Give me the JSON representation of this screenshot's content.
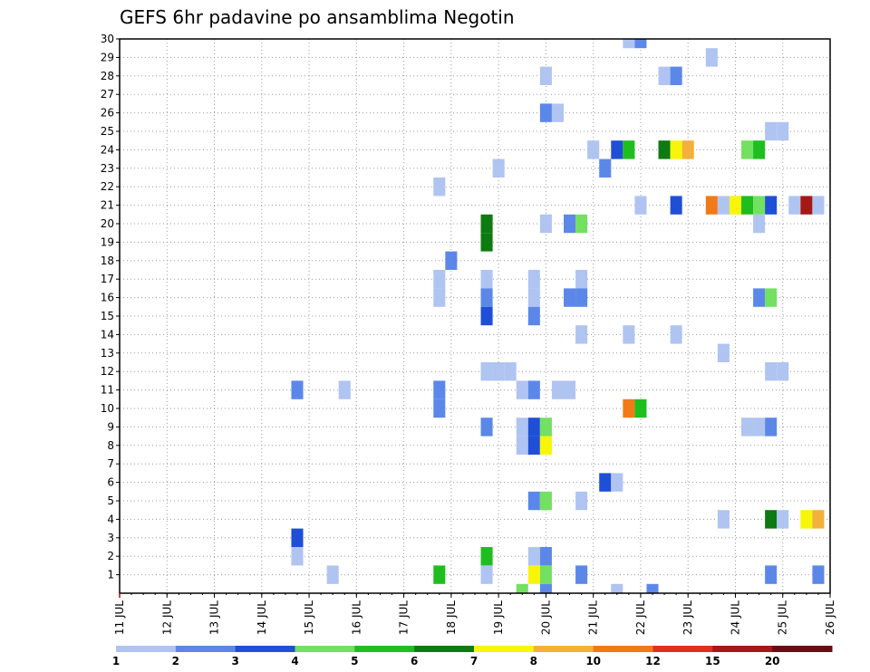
{
  "chart_data": {
    "type": "heatmap",
    "title": "GEFS 6hr padavine po ansamblima Negotin",
    "ylabel": "",
    "xlabel": "",
    "y_range": [
      0,
      30
    ],
    "y_ticks": [
      "1",
      "2",
      "3",
      "4",
      "5",
      "6",
      "7",
      "8",
      "9",
      "10",
      "11",
      "12",
      "13",
      "14",
      "15",
      "16",
      "17",
      "18",
      "19",
      "20",
      "21",
      "22",
      "23",
      "24",
      "25",
      "26",
      "27",
      "28",
      "29",
      "30"
    ],
    "x_range": [
      11,
      26
    ],
    "x_ticks": [
      {
        "day": 11,
        "label": "11 JUL"
      },
      {
        "day": 12,
        "label": "12 JUL"
      },
      {
        "day": 13,
        "label": "13 JUL"
      },
      {
        "day": 14,
        "label": "14 JUL"
      },
      {
        "day": 15,
        "label": "15 JUL"
      },
      {
        "day": 16,
        "label": "16 JUL"
      },
      {
        "day": 17,
        "label": "17 JUL"
      },
      {
        "day": 18,
        "label": "18 JUL"
      },
      {
        "day": 19,
        "label": "19 JUL"
      },
      {
        "day": 20,
        "label": "20 JUL"
      },
      {
        "day": 21,
        "label": "21 JUL"
      },
      {
        "day": 22,
        "label": "22 JUL"
      },
      {
        "day": 23,
        "label": "23 JUL"
      },
      {
        "day": 24,
        "label": "24 JUL"
      },
      {
        "day": 25,
        "label": "25 JUL"
      },
      {
        "day": 26,
        "label": "26 JUL"
      }
    ],
    "colorbar": {
      "labels": [
        "1",
        "2",
        "3",
        "4",
        "5",
        "6",
        "7",
        "8",
        "10",
        "12",
        "15",
        "20"
      ],
      "colors": [
        "#b0c4f2",
        "#5b88e8",
        "#1f4fd6",
        "#72e060",
        "#1fbe1f",
        "#0d7a12",
        "#f7f50a",
        "#f5b03a",
        "#f07a18",
        "#e0301c",
        "#a51818",
        "#6a0c14"
      ]
    },
    "cells": [
      {
        "m": 30,
        "t": 21.75,
        "c": 0
      },
      {
        "m": 30,
        "t": 22.0,
        "c": 1
      },
      {
        "m": 29,
        "t": 23.5,
        "c": 0
      },
      {
        "m": 28,
        "t": 20.0,
        "c": 0
      },
      {
        "m": 28,
        "t": 22.5,
        "c": 0
      },
      {
        "m": 28,
        "t": 22.75,
        "c": 1
      },
      {
        "m": 26,
        "t": 20.0,
        "c": 1
      },
      {
        "m": 26,
        "t": 20.25,
        "c": 0
      },
      {
        "m": 25,
        "t": 24.75,
        "c": 0
      },
      {
        "m": 25,
        "t": 25.0,
        "c": 0
      },
      {
        "m": 24,
        "t": 21.0,
        "c": 0
      },
      {
        "m": 24,
        "t": 21.5,
        "c": 2
      },
      {
        "m": 24,
        "t": 21.75,
        "c": 4
      },
      {
        "m": 24,
        "t": 22.5,
        "c": 5
      },
      {
        "m": 24,
        "t": 22.75,
        "c": 6
      },
      {
        "m": 24,
        "t": 23.0,
        "c": 7
      },
      {
        "m": 24,
        "t": 24.25,
        "c": 3
      },
      {
        "m": 24,
        "t": 24.5,
        "c": 4
      },
      {
        "m": 23,
        "t": 19.0,
        "c": 0
      },
      {
        "m": 23,
        "t": 21.25,
        "c": 1
      },
      {
        "m": 22,
        "t": 17.75,
        "c": 0
      },
      {
        "m": 21,
        "t": 22.0,
        "c": 0
      },
      {
        "m": 21,
        "t": 22.75,
        "c": 2
      },
      {
        "m": 21,
        "t": 23.5,
        "c": 8
      },
      {
        "m": 21,
        "t": 23.75,
        "c": 0
      },
      {
        "m": 21,
        "t": 24.0,
        "c": 6
      },
      {
        "m": 21,
        "t": 24.25,
        "c": 4
      },
      {
        "m": 21,
        "t": 24.5,
        "c": 3
      },
      {
        "m": 21,
        "t": 24.75,
        "c": 2
      },
      {
        "m": 21,
        "t": 25.25,
        "c": 0
      },
      {
        "m": 21,
        "t": 25.5,
        "c": 10
      },
      {
        "m": 21,
        "t": 25.75,
        "c": 0
      },
      {
        "m": 20,
        "t": 18.75,
        "c": 5
      },
      {
        "m": 20,
        "t": 20.0,
        "c": 0
      },
      {
        "m": 20,
        "t": 20.5,
        "c": 1
      },
      {
        "m": 20,
        "t": 20.75,
        "c": 3
      },
      {
        "m": 20,
        "t": 24.5,
        "c": 0
      },
      {
        "m": 19,
        "t": 18.75,
        "c": 5
      },
      {
        "m": 18,
        "t": 18.0,
        "c": 1
      },
      {
        "m": 17,
        "t": 17.75,
        "c": 0
      },
      {
        "m": 17,
        "t": 18.75,
        "c": 0
      },
      {
        "m": 17,
        "t": 19.75,
        "c": 0
      },
      {
        "m": 17,
        "t": 20.75,
        "c": 0
      },
      {
        "m": 16,
        "t": 17.75,
        "c": 0
      },
      {
        "m": 16,
        "t": 18.75,
        "c": 1
      },
      {
        "m": 16,
        "t": 19.75,
        "c": 0
      },
      {
        "m": 16,
        "t": 20.5,
        "c": 1
      },
      {
        "m": 16,
        "t": 20.75,
        "c": 1
      },
      {
        "m": 16,
        "t": 24.5,
        "c": 1
      },
      {
        "m": 16,
        "t": 24.75,
        "c": 3
      },
      {
        "m": 15,
        "t": 18.75,
        "c": 2
      },
      {
        "m": 15,
        "t": 19.75,
        "c": 1
      },
      {
        "m": 14,
        "t": 20.75,
        "c": 0
      },
      {
        "m": 14,
        "t": 21.75,
        "c": 0
      },
      {
        "m": 14,
        "t": 22.75,
        "c": 0
      },
      {
        "m": 13,
        "t": 23.75,
        "c": 0
      },
      {
        "m": 12,
        "t": 18.75,
        "c": 0
      },
      {
        "m": 12,
        "t": 19.0,
        "c": 0
      },
      {
        "m": 12,
        "t": 19.25,
        "c": 0
      },
      {
        "m": 12,
        "t": 24.75,
        "c": 0
      },
      {
        "m": 12,
        "t": 25.0,
        "c": 0
      },
      {
        "m": 11,
        "t": 14.75,
        "c": 1
      },
      {
        "m": 11,
        "t": 15.75,
        "c": 0
      },
      {
        "m": 11,
        "t": 17.75,
        "c": 1
      },
      {
        "m": 11,
        "t": 19.5,
        "c": 0
      },
      {
        "m": 11,
        "t": 19.75,
        "c": 1
      },
      {
        "m": 11,
        "t": 20.25,
        "c": 0
      },
      {
        "m": 11,
        "t": 20.5,
        "c": 0
      },
      {
        "m": 10,
        "t": 17.75,
        "c": 1
      },
      {
        "m": 10,
        "t": 21.75,
        "c": 8
      },
      {
        "m": 10,
        "t": 22.0,
        "c": 4
      },
      {
        "m": 9,
        "t": 18.75,
        "c": 1
      },
      {
        "m": 9,
        "t": 19.5,
        "c": 0
      },
      {
        "m": 9,
        "t": 19.75,
        "c": 2
      },
      {
        "m": 9,
        "t": 20.0,
        "c": 3
      },
      {
        "m": 9,
        "t": 24.25,
        "c": 0
      },
      {
        "m": 9,
        "t": 24.5,
        "c": 0
      },
      {
        "m": 9,
        "t": 24.75,
        "c": 1
      },
      {
        "m": 8,
        "t": 19.5,
        "c": 0
      },
      {
        "m": 8,
        "t": 19.75,
        "c": 2
      },
      {
        "m": 8,
        "t": 20.0,
        "c": 6
      },
      {
        "m": 6,
        "t": 21.25,
        "c": 2
      },
      {
        "m": 6,
        "t": 21.5,
        "c": 0
      },
      {
        "m": 5,
        "t": 19.75,
        "c": 1
      },
      {
        "m": 5,
        "t": 20.0,
        "c": 3
      },
      {
        "m": 5,
        "t": 20.75,
        "c": 0
      },
      {
        "m": 4,
        "t": 23.75,
        "c": 0
      },
      {
        "m": 4,
        "t": 24.75,
        "c": 5
      },
      {
        "m": 4,
        "t": 25.0,
        "c": 0
      },
      {
        "m": 4,
        "t": 25.5,
        "c": 6
      },
      {
        "m": 4,
        "t": 25.75,
        "c": 7
      },
      {
        "m": 3,
        "t": 14.75,
        "c": 2
      },
      {
        "m": 2,
        "t": 14.75,
        "c": 0
      },
      {
        "m": 2,
        "t": 18.75,
        "c": 4
      },
      {
        "m": 2,
        "t": 19.75,
        "c": 0
      },
      {
        "m": 2,
        "t": 20.0,
        "c": 1
      },
      {
        "m": 1,
        "t": 15.5,
        "c": 0
      },
      {
        "m": 1,
        "t": 17.75,
        "c": 4
      },
      {
        "m": 1,
        "t": 18.75,
        "c": 0
      },
      {
        "m": 1,
        "t": 19.75,
        "c": 6
      },
      {
        "m": 1,
        "t": 20.0,
        "c": 3
      },
      {
        "m": 1,
        "t": 20.75,
        "c": 1
      },
      {
        "m": 1,
        "t": 24.75,
        "c": 1
      },
      {
        "m": 1,
        "t": 25.75,
        "c": 1
      },
      {
        "m": 0,
        "t": 19.5,
        "c": 3
      },
      {
        "m": 0,
        "t": 20.0,
        "c": 1
      },
      {
        "m": 0,
        "t": 21.5,
        "c": 0
      },
      {
        "m": 0,
        "t": 22.25,
        "c": 1
      }
    ]
  }
}
